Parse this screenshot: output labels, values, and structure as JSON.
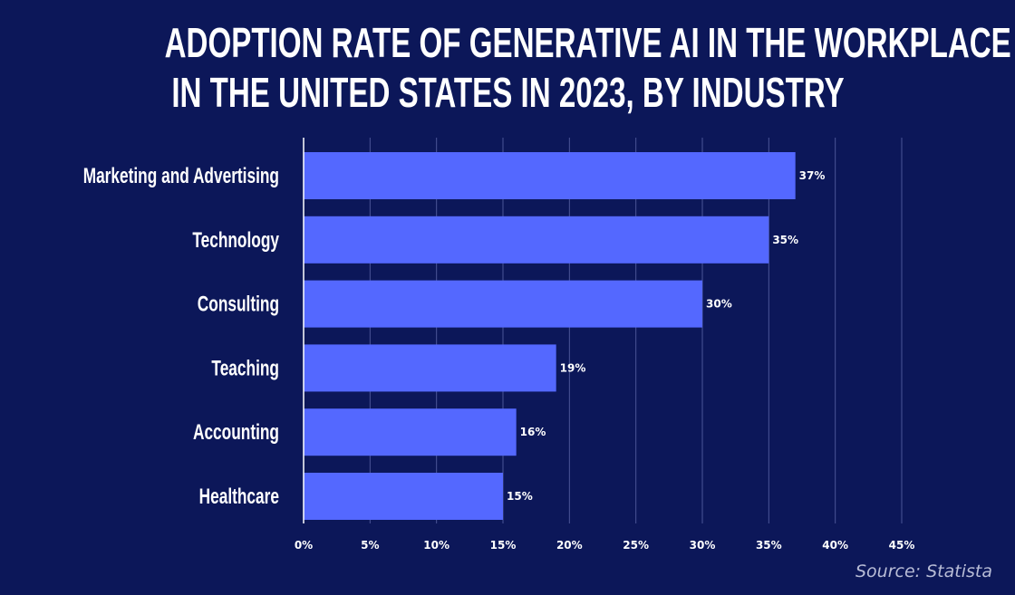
{
  "chart_data": {
    "type": "bar",
    "orientation": "horizontal",
    "title_lines": [
      "ADOPTION RATE OF GENERATIVE AI IN THE WORKPLACE",
      "IN THE UNITED STATES IN 2023, BY INDUSTRY"
    ],
    "categories": [
      "Marketing and Advertising",
      "Technology",
      "Consulting",
      "Teaching",
      "Accounting",
      "Healthcare"
    ],
    "values": [
      37,
      35,
      30,
      19,
      16,
      15
    ],
    "data_labels": [
      "37%",
      "35%",
      "30%",
      "19%",
      "16%",
      "15%"
    ],
    "xlim": [
      0,
      45
    ],
    "x_ticks": [
      0,
      5,
      10,
      15,
      20,
      25,
      30,
      35,
      40,
      45
    ],
    "x_tick_labels": [
      "0%",
      "5%",
      "10%",
      "15%",
      "20%",
      "25%",
      "30%",
      "35%",
      "40%",
      "45%"
    ],
    "xlabel": "",
    "ylabel": "",
    "grid": true,
    "colors": {
      "background": "#0c1759",
      "bar": "#5468ff",
      "grid": "#4a5596",
      "text": "#ffffff"
    }
  },
  "source": "Source: Statista"
}
